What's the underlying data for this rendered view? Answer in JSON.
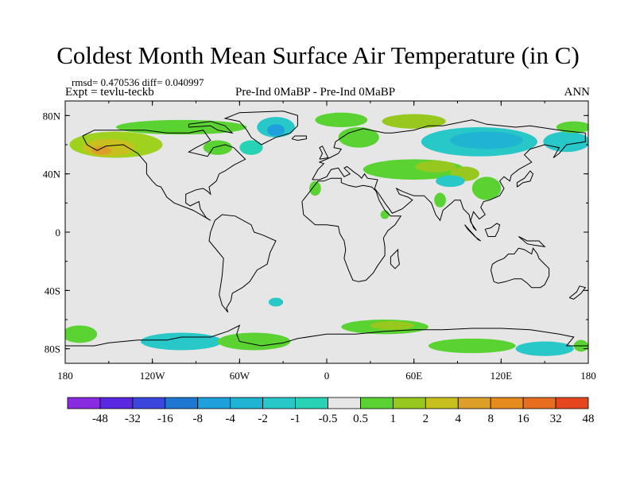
{
  "title": "Coldest Month Mean Surface Air Temperature (in C)",
  "stats_line": "rmsd= 0.470536 diff= 0.040997",
  "expt_line": "Expt = tevlu-teckb",
  "comparison": "Pre-Ind 0MaBP - Pre-Ind 0MaBP",
  "period": "ANN",
  "map": {
    "projection": "cylindrical equidistant",
    "lon_range": [
      -180,
      180
    ],
    "lat_range": [
      -90,
      90
    ],
    "lat_ticks": [
      {
        "value": 80,
        "label": "80N"
      },
      {
        "value": 40,
        "label": "40N"
      },
      {
        "value": 0,
        "label": "0"
      },
      {
        "value": -40,
        "label": "40S"
      },
      {
        "value": -80,
        "label": "80S"
      }
    ],
    "lon_ticks": [
      {
        "value": -180,
        "label": "180"
      },
      {
        "value": -120,
        "label": "120W"
      },
      {
        "value": -60,
        "label": "60W"
      },
      {
        "value": 0,
        "label": "0"
      },
      {
        "value": 60,
        "label": "60E"
      },
      {
        "value": 120,
        "label": "120E"
      },
      {
        "value": 180,
        "label": "180"
      }
    ],
    "background_color": "#e6e6e6",
    "anomaly_regions": [
      {
        "name": "alaska-yukon-warm",
        "lon": -145,
        "lat": 60,
        "rlon": 32,
        "rlat": 9,
        "color": "#9fd21e"
      },
      {
        "name": "alaska-core-warm",
        "lon": -150,
        "lat": 58,
        "rlon": 18,
        "rlat": 6,
        "color": "#c8c01e"
      },
      {
        "name": "alaska-peak-warm",
        "lon": -155,
        "lat": 56,
        "rlon": 7,
        "rlat": 3,
        "color": "#dca028"
      },
      {
        "name": "canada-arctic-warm",
        "lon": -100,
        "lat": 72,
        "rlon": 45,
        "rlat": 5,
        "color": "#5ad232"
      },
      {
        "name": "hudson-warm",
        "lon": -75,
        "lat": 58,
        "rlon": 10,
        "rlat": 5,
        "color": "#5ad232"
      },
      {
        "name": "greenland-cool",
        "lon": -35,
        "lat": 72,
        "rlon": 13,
        "rlat": 7,
        "color": "#28c8c8"
      },
      {
        "name": "greenland-core-cool",
        "lon": -35,
        "lat": 70,
        "rlon": 6,
        "rlat": 4,
        "color": "#1ea0dc"
      },
      {
        "name": "labrador-cool",
        "lon": -52,
        "lat": 58,
        "rlon": 8,
        "rlat": 5,
        "color": "#28d2b4"
      },
      {
        "name": "svalbard-warm",
        "lon": 10,
        "lat": 77,
        "rlon": 18,
        "rlat": 5,
        "color": "#5ad232"
      },
      {
        "name": "scandinavia-warm",
        "lon": 22,
        "lat": 65,
        "rlon": 14,
        "rlat": 7,
        "color": "#5ad232"
      },
      {
        "name": "kara-warm",
        "lon": 60,
        "lat": 76,
        "rlon": 22,
        "rlat": 5,
        "color": "#96c81e"
      },
      {
        "name": "siberia-cool",
        "lon": 105,
        "lat": 62,
        "rlon": 40,
        "rlat": 10,
        "color": "#28c8c8"
      },
      {
        "name": "siberia-core-cool",
        "lon": 110,
        "lat": 63,
        "rlon": 25,
        "rlat": 6,
        "color": "#1eb4d2"
      },
      {
        "name": "east-siberia-cool",
        "lon": 165,
        "lat": 62,
        "rlon": 16,
        "rlat": 7,
        "color": "#28c8c8"
      },
      {
        "name": "far-east-warm",
        "lon": 170,
        "lat": 72,
        "rlon": 12,
        "rlat": 4,
        "color": "#5ad232"
      },
      {
        "name": "central-asia-warm",
        "lon": 60,
        "lat": 43,
        "rlon": 35,
        "rlat": 7,
        "color": "#5ad232"
      },
      {
        "name": "kazakh-warm",
        "lon": 75,
        "lat": 45,
        "rlon": 14,
        "rlat": 4,
        "color": "#96c81e"
      },
      {
        "name": "mongolia-warm",
        "lon": 95,
        "lat": 40,
        "rlon": 10,
        "rlat": 5,
        "color": "#96c81e"
      },
      {
        "name": "tibet-cool",
        "lon": 85,
        "lat": 35,
        "rlon": 10,
        "rlat": 4,
        "color": "#28c8c8"
      },
      {
        "name": "east-asia-warm",
        "lon": 110,
        "lat": 30,
        "rlon": 10,
        "rlat": 8,
        "color": "#5ad232"
      },
      {
        "name": "india-warm",
        "lon": 78,
        "lat": 22,
        "rlon": 4,
        "rlat": 5,
        "color": "#5ad232"
      },
      {
        "name": "sahara-warm",
        "lon": -8,
        "lat": 30,
        "rlon": 4,
        "rlat": 5,
        "color": "#5ad232"
      },
      {
        "name": "horn-warm",
        "lon": 40,
        "lat": 12,
        "rlon": 3,
        "rlat": 3,
        "color": "#5ad232"
      },
      {
        "name": "south-atlantic-cool",
        "lon": -35,
        "lat": -48,
        "rlon": 5,
        "rlat": 3,
        "color": "#28c8c8"
      },
      {
        "name": "antarctica-west-cool",
        "lon": -100,
        "lat": -75,
        "rlon": 28,
        "rlat": 6,
        "color": "#28c8c8"
      },
      {
        "name": "antarctica-weddell-warm",
        "lon": -50,
        "lat": -75,
        "rlon": 25,
        "rlat": 6,
        "color": "#5ad232"
      },
      {
        "name": "antarctica-ross-warm",
        "lon": -170,
        "lat": -70,
        "rlon": 12,
        "rlat": 6,
        "color": "#5ad232"
      },
      {
        "name": "southern-ocean-warm",
        "lon": 40,
        "lat": -65,
        "rlon": 30,
        "rlat": 5,
        "color": "#5ad232"
      },
      {
        "name": "southern-ocean-core-warm",
        "lon": 45,
        "lat": -64,
        "rlon": 15,
        "rlat": 3,
        "color": "#96c81e"
      },
      {
        "name": "antarctica-east-warm",
        "lon": 100,
        "lat": -78,
        "rlon": 30,
        "rlat": 5,
        "color": "#5ad232"
      },
      {
        "name": "antarctica-east-cool",
        "lon": 150,
        "lat": -80,
        "rlon": 20,
        "rlat": 5,
        "color": "#28c8c8"
      },
      {
        "name": "amundsen-warm",
        "lon": 175,
        "lat": -78,
        "rlon": 5,
        "rlat": 4,
        "color": "#5ad232"
      }
    ]
  },
  "colorbar": {
    "colors": [
      "#8a2be2",
      "#5a28e1",
      "#3c46dc",
      "#1e78d2",
      "#1ea0dc",
      "#1eb4d2",
      "#28c8c8",
      "#28d2b4",
      "#e6e6e6",
      "#5ad232",
      "#96c81e",
      "#c8c01e",
      "#dca028",
      "#e68c1e",
      "#e66e1e",
      "#e6461e"
    ],
    "labels": [
      "-48",
      "-32",
      "-16",
      "-8",
      "-4",
      "-2",
      "-1",
      "-0.5",
      "0.5",
      "1",
      "2",
      "4",
      "8",
      "16",
      "32",
      "48"
    ]
  }
}
